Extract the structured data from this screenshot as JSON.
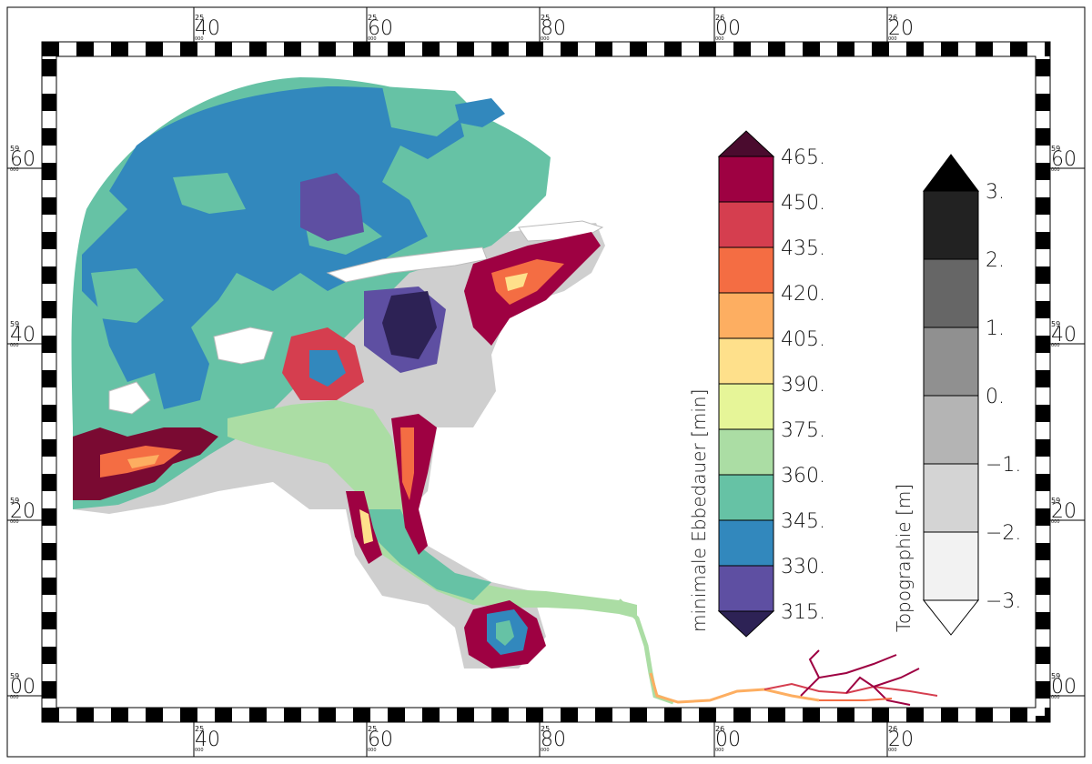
{
  "map": {
    "top_ticks": [
      {
        "sup": "25",
        "main": "40",
        "sub": "000"
      },
      {
        "sup": "25",
        "main": "60",
        "sub": "000"
      },
      {
        "sup": "25",
        "main": "80",
        "sub": "000"
      },
      {
        "sup": "26",
        "main": "00",
        "sub": "000"
      },
      {
        "sup": "26",
        "main": "20",
        "sub": "000"
      }
    ],
    "bottom_ticks": [
      {
        "sup": "25",
        "main": "40",
        "sub": "000"
      },
      {
        "sup": "25",
        "main": "60",
        "sub": "000"
      },
      {
        "sup": "25",
        "main": "80",
        "sub": "000"
      },
      {
        "sup": "26",
        "main": "00",
        "sub": "000"
      },
      {
        "sup": "26",
        "main": "20",
        "sub": "000"
      }
    ],
    "left_ticks": [
      {
        "sup": "59",
        "main": "60",
        "sub": "000"
      },
      {
        "sup": "59",
        "main": "40",
        "sub": "000"
      },
      {
        "sup": "59",
        "main": "20",
        "sub": "000"
      },
      {
        "sup": "59",
        "main": "00",
        "sub": "000"
      }
    ],
    "right_ticks": [
      {
        "sup": "59",
        "main": "60",
        "sub": "000"
      },
      {
        "sup": "59",
        "main": "40",
        "sub": "000"
      },
      {
        "sup": "59",
        "main": "20",
        "sub": "000"
      },
      {
        "sup": "59",
        "main": "00",
        "sub": "000"
      }
    ]
  },
  "legend_ebb": {
    "title": "minimale Ebbedauer [min]",
    "labels": [
      "465.",
      "450.",
      "435.",
      "420.",
      "405.",
      "390.",
      "375.",
      "360.",
      "345.",
      "330.",
      "315."
    ],
    "colors": [
      "#4a0b2e",
      "#9e0142",
      "#d53e4f",
      "#f46d43",
      "#fdae61",
      "#fee08b",
      "#e6f598",
      "#abdda4",
      "#66c2a5",
      "#3288bd",
      "#5e4fa2",
      "#2d2255"
    ]
  },
  "legend_topo": {
    "title": "Topographie [m]",
    "labels": [
      "3.",
      "2.",
      "1.",
      "0.",
      "−1.",
      "−2.",
      "−3."
    ],
    "colors": [
      "#000000",
      "#222222",
      "#666666",
      "#909090",
      "#b4b4b4",
      "#d4d4d4",
      "#f2f2f2",
      "#ffffff"
    ]
  }
}
